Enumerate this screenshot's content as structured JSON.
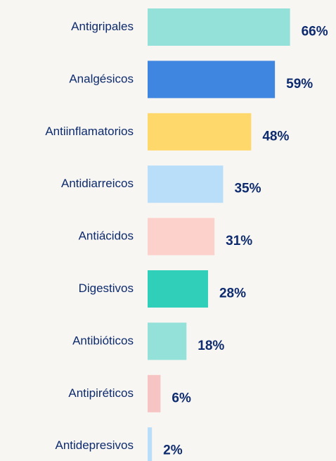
{
  "chart_data": {
    "type": "bar",
    "orientation": "horizontal",
    "categories": [
      "Antigripales",
      "Analgésicos",
      "Antiinflamatorios",
      "Antidiarreicos",
      "Antiácidos",
      "Digestivos",
      "Antibióticos",
      "Antipiréticos",
      "Antidepresivos"
    ],
    "values": [
      66,
      59,
      48,
      35,
      31,
      28,
      18,
      6,
      2
    ],
    "value_labels": [
      "66%",
      "59%",
      "48%",
      "35%",
      "31%",
      "28%",
      "18%",
      "6%",
      "2%"
    ],
    "colors": [
      "#93e1d8",
      "#3f86e0",
      "#ffd86b",
      "#b8def9",
      "#fcd1cb",
      "#2fcfba",
      "#93e1d8",
      "#f7c4c4",
      "#b8def9"
    ]
  }
}
